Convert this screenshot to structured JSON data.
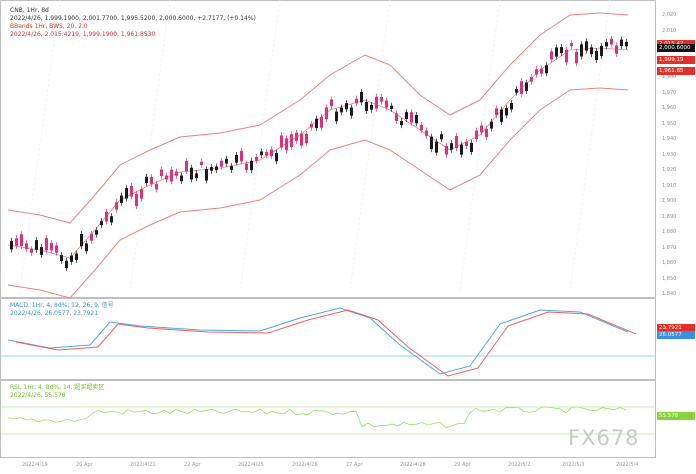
{
  "header": {
    "symbol_line": "CNB, 1Hr, 8d",
    "ohlc_line": "2022/4/26, 1,999.1900, 2,001.7700, 1,995.5200, 2,000.6000, +2.7177, (+0.14%)",
    "boll_line": "BBands 1Hr, BWS, 20, 2.0",
    "boll_values": "2022/4/26, 2,015.4219, 1,999.1900, 1,961.8530"
  },
  "price_axis": {
    "ticks": [
      "2,020",
      "2,010",
      "2,000",
      "1,990",
      "1,980",
      "1,970",
      "1,960",
      "1,950",
      "1,940",
      "1,930",
      "1,920",
      "1,910",
      "1,900",
      "1,890",
      "1,880",
      "1,870",
      "1,860",
      "1,850",
      "1,840"
    ],
    "tags": [
      {
        "text": "2,015.42",
        "color": "#e0302a"
      },
      {
        "text": "2,000.6000",
        "color": "#111111"
      },
      {
        "text": "1,999.19",
        "color": "#e0302a"
      },
      {
        "text": "1,961.85",
        "color": "#e0302a"
      }
    ]
  },
  "macd": {
    "title": "MACD, 1Hr, 4, 8d%, 12, 26, 9, 信号",
    "values": "2022/4/26, 26.0577, 23.7921",
    "tags": [
      {
        "text": "23.7921",
        "color": "#e0302a"
      },
      {
        "text": "26.0577",
        "color": "#3a8fe0"
      }
    ]
  },
  "rsi": {
    "title": "RSI, 1Hr, 4, 8d%, 14, 超买超卖区",
    "values": "2022/4/26, 55.578",
    "tag": {
      "text": "55.578",
      "color": "#8bd13a"
    }
  },
  "x_labels": [
    "2022/4/19",
    "20 Apr",
    "2022/4/21",
    "22 Apr",
    "2022/4/25",
    "2022/4/26",
    "27 Apr",
    "2022/4/28",
    "29 Apr",
    "2022/5/2",
    "2022/5/3",
    "2022/5/4"
  ],
  "watermark": "FX678",
  "colors": {
    "bull": "#e0307a",
    "bear": "#1a1a1a",
    "band": "#f08080",
    "macd": "#4aa8f0",
    "signal": "#f06060",
    "rsi": "#9be060"
  }
}
